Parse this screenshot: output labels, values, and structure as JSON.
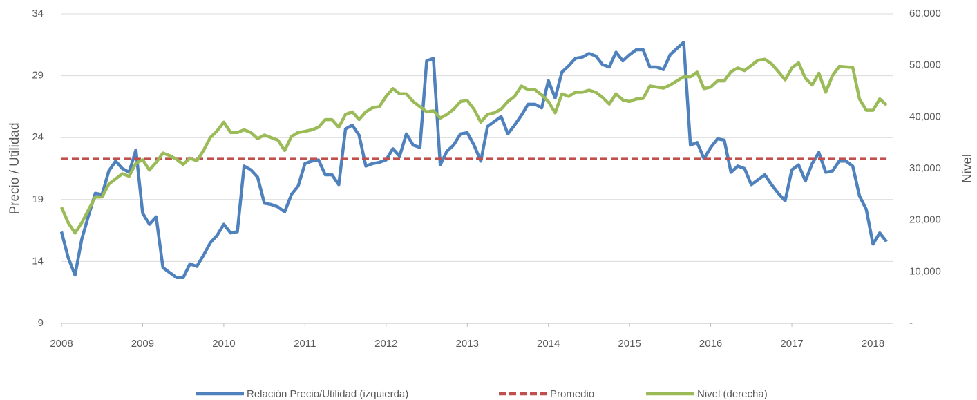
{
  "chart_data": {
    "type": "line",
    "ylabel": "Precio / Utilidad",
    "y2label": "Nivel",
    "xlim": [
      2008,
      2018.25
    ],
    "xticks": [
      2008,
      2009,
      2010,
      2011,
      2012,
      2013,
      2014,
      2015,
      2016,
      2017,
      2018
    ],
    "ylim": [
      9,
      34
    ],
    "yticks": [
      9,
      14,
      19,
      24,
      29,
      34
    ],
    "y2lim": [
      0,
      60000
    ],
    "y2ticks": [
      {
        "value": 0,
        "label": "-"
      },
      {
        "value": 10000,
        "label": "10,000"
      },
      {
        "value": 20000,
        "label": "20,000"
      },
      {
        "value": 30000,
        "label": "30,000"
      },
      {
        "value": 40000,
        "label": "40,000"
      },
      {
        "value": 50000,
        "label": "50,000"
      },
      {
        "value": 60000,
        "label": "60,000"
      }
    ],
    "grid": true,
    "legend": "bottom",
    "x": [
      2008,
      2008.083,
      2008.167,
      2008.25,
      2008.333,
      2008.417,
      2008.5,
      2008.583,
      2008.667,
      2008.75,
      2008.833,
      2008.917,
      2009,
      2009.083,
      2009.167,
      2009.25,
      2009.333,
      2009.417,
      2009.5,
      2009.583,
      2009.667,
      2009.75,
      2009.833,
      2009.917,
      2010,
      2010.083,
      2010.167,
      2010.25,
      2010.333,
      2010.417,
      2010.5,
      2010.583,
      2010.667,
      2010.75,
      2010.833,
      2010.917,
      2011,
      2011.083,
      2011.167,
      2011.25,
      2011.333,
      2011.417,
      2011.5,
      2011.583,
      2011.667,
      2011.75,
      2011.833,
      2011.917,
      2012,
      2012.083,
      2012.167,
      2012.25,
      2012.333,
      2012.417,
      2012.5,
      2012.583,
      2012.667,
      2012.75,
      2012.833,
      2012.917,
      2013,
      2013.083,
      2013.167,
      2013.25,
      2013.333,
      2013.417,
      2013.5,
      2013.583,
      2013.667,
      2013.75,
      2013.833,
      2013.917,
      2014,
      2014.083,
      2014.167,
      2014.25,
      2014.333,
      2014.417,
      2014.5,
      2014.583,
      2014.667,
      2014.75,
      2014.833,
      2014.917,
      2015,
      2015.083,
      2015.167,
      2015.25,
      2015.333,
      2015.417,
      2015.5,
      2015.583,
      2015.667,
      2015.75,
      2015.833,
      2015.917,
      2016,
      2016.083,
      2016.167,
      2016.25,
      2016.333,
      2016.417,
      2016.5,
      2016.583,
      2016.667,
      2016.75,
      2016.833,
      2016.917,
      2017,
      2017.083,
      2017.167,
      2017.25,
      2017.333,
      2017.417,
      2017.5,
      2017.583,
      2017.667,
      2017.75,
      2017.833,
      2017.917,
      2018,
      2018.083,
      2018.167
    ],
    "series": [
      {
        "name": "Relación Precio/Utilidad (izquierda)",
        "color": "#4f81bd",
        "axis": "y",
        "values": [
          16.4,
          14.3,
          12.9,
          15.8,
          17.7,
          19.5,
          19.4,
          21.3,
          22.1,
          21.5,
          21.2,
          23.0,
          17.9,
          17.0,
          17.6,
          13.5,
          13.1,
          12.7,
          12.7,
          13.8,
          13.6,
          14.5,
          15.5,
          16.1,
          17.0,
          16.3,
          16.4,
          21.7,
          21.4,
          20.8,
          18.7,
          18.6,
          18.4,
          18.0,
          19.4,
          20.1,
          21.9,
          22.1,
          22.2,
          21.0,
          21.0,
          20.2,
          24.7,
          25.0,
          24.2,
          21.7,
          21.9,
          22.0,
          22.2,
          23.1,
          22.5,
          24.3,
          23.4,
          23.2,
          30.2,
          30.4,
          21.8,
          22.9,
          23.4,
          24.3,
          24.4,
          23.4,
          22.1,
          24.9,
          25.3,
          25.7,
          24.3,
          25.0,
          25.8,
          26.7,
          26.7,
          26.4,
          28.6,
          27.2,
          29.3,
          29.8,
          30.4,
          30.5,
          30.8,
          30.6,
          29.9,
          29.7,
          30.9,
          30.2,
          30.7,
          31.1,
          31.1,
          29.7,
          29.7,
          29.5,
          30.7,
          31.2,
          31.7,
          23.4,
          23.6,
          22.3,
          23.2,
          23.9,
          23.8,
          21.2,
          21.7,
          21.5,
          20.2,
          20.6,
          21.0,
          20.2,
          19.5,
          18.9,
          21.4,
          21.8,
          20.5,
          21.9,
          22.8,
          21.2,
          21.3,
          22.1,
          22.1,
          21.7,
          19.3,
          18.2,
          15.4,
          16.3,
          15.6
        ]
      },
      {
        "name": "Promedio",
        "color": "#c0504d",
        "axis": "y",
        "dashed": true,
        "values": [
          22.3,
          22.3,
          22.3,
          22.3,
          22.3,
          22.3,
          22.3,
          22.3,
          22.3,
          22.3,
          22.3,
          22.3,
          22.3,
          22.3,
          22.3,
          22.3,
          22.3,
          22.3,
          22.3,
          22.3,
          22.3,
          22.3,
          22.3,
          22.3,
          22.3,
          22.3,
          22.3,
          22.3,
          22.3,
          22.3,
          22.3,
          22.3,
          22.3,
          22.3,
          22.3,
          22.3,
          22.3,
          22.3,
          22.3,
          22.3,
          22.3,
          22.3,
          22.3,
          22.3,
          22.3,
          22.3,
          22.3,
          22.3,
          22.3,
          22.3,
          22.3,
          22.3,
          22.3,
          22.3,
          22.3,
          22.3,
          22.3,
          22.3,
          22.3,
          22.3,
          22.3,
          22.3,
          22.3,
          22.3,
          22.3,
          22.3,
          22.3,
          22.3,
          22.3,
          22.3,
          22.3,
          22.3,
          22.3,
          22.3,
          22.3,
          22.3,
          22.3,
          22.3,
          22.3,
          22.3,
          22.3,
          22.3,
          22.3,
          22.3,
          22.3,
          22.3,
          22.3,
          22.3,
          22.3,
          22.3,
          22.3,
          22.3,
          22.3,
          22.3,
          22.3,
          22.3,
          22.3,
          22.3,
          22.3,
          22.3,
          22.3,
          22.3,
          22.3,
          22.3,
          22.3,
          22.3,
          22.3,
          22.3,
          22.3,
          22.3,
          22.3,
          22.3,
          22.3,
          22.3,
          22.3,
          22.3,
          22.3,
          22.3,
          22.3,
          22.3,
          22.3,
          22.3,
          22.3
        ]
      },
      {
        "name": "Nivel (derecha)",
        "color": "#9bbb59",
        "axis": "y2",
        "values": [
          22500,
          19500,
          17500,
          19500,
          22000,
          24500,
          24500,
          27000,
          28000,
          29000,
          28500,
          31000,
          31700,
          29700,
          31200,
          33000,
          32500,
          31800,
          30800,
          32000,
          31500,
          33500,
          36000,
          37300,
          39000,
          37000,
          37000,
          37500,
          37000,
          35800,
          36500,
          36000,
          35500,
          33500,
          36200,
          37000,
          37200,
          37500,
          38000,
          39500,
          39500,
          38000,
          40500,
          41000,
          39500,
          41000,
          41800,
          42000,
          44000,
          45500,
          44500,
          44500,
          43000,
          42000,
          41000,
          41200,
          39800,
          40500,
          41500,
          43000,
          43200,
          41500,
          39000,
          40500,
          40800,
          41500,
          43000,
          44000,
          46000,
          45300,
          45300,
          44300,
          43000,
          40800,
          44500,
          44000,
          44800,
          44800,
          45200,
          44800,
          43800,
          42500,
          44500,
          43300,
          43000,
          43500,
          43600,
          46000,
          45800,
          45600,
          46200,
          47000,
          47800,
          47800,
          48700,
          45500,
          45800,
          47000,
          47000,
          48800,
          49500,
          49000,
          50000,
          51000,
          51200,
          50300,
          48800,
          47200,
          49500,
          50500,
          47500,
          46200,
          48500,
          44800,
          48000,
          49800,
          49700,
          49600,
          43500,
          41300,
          41300,
          43500,
          42300
        ]
      }
    ]
  }
}
